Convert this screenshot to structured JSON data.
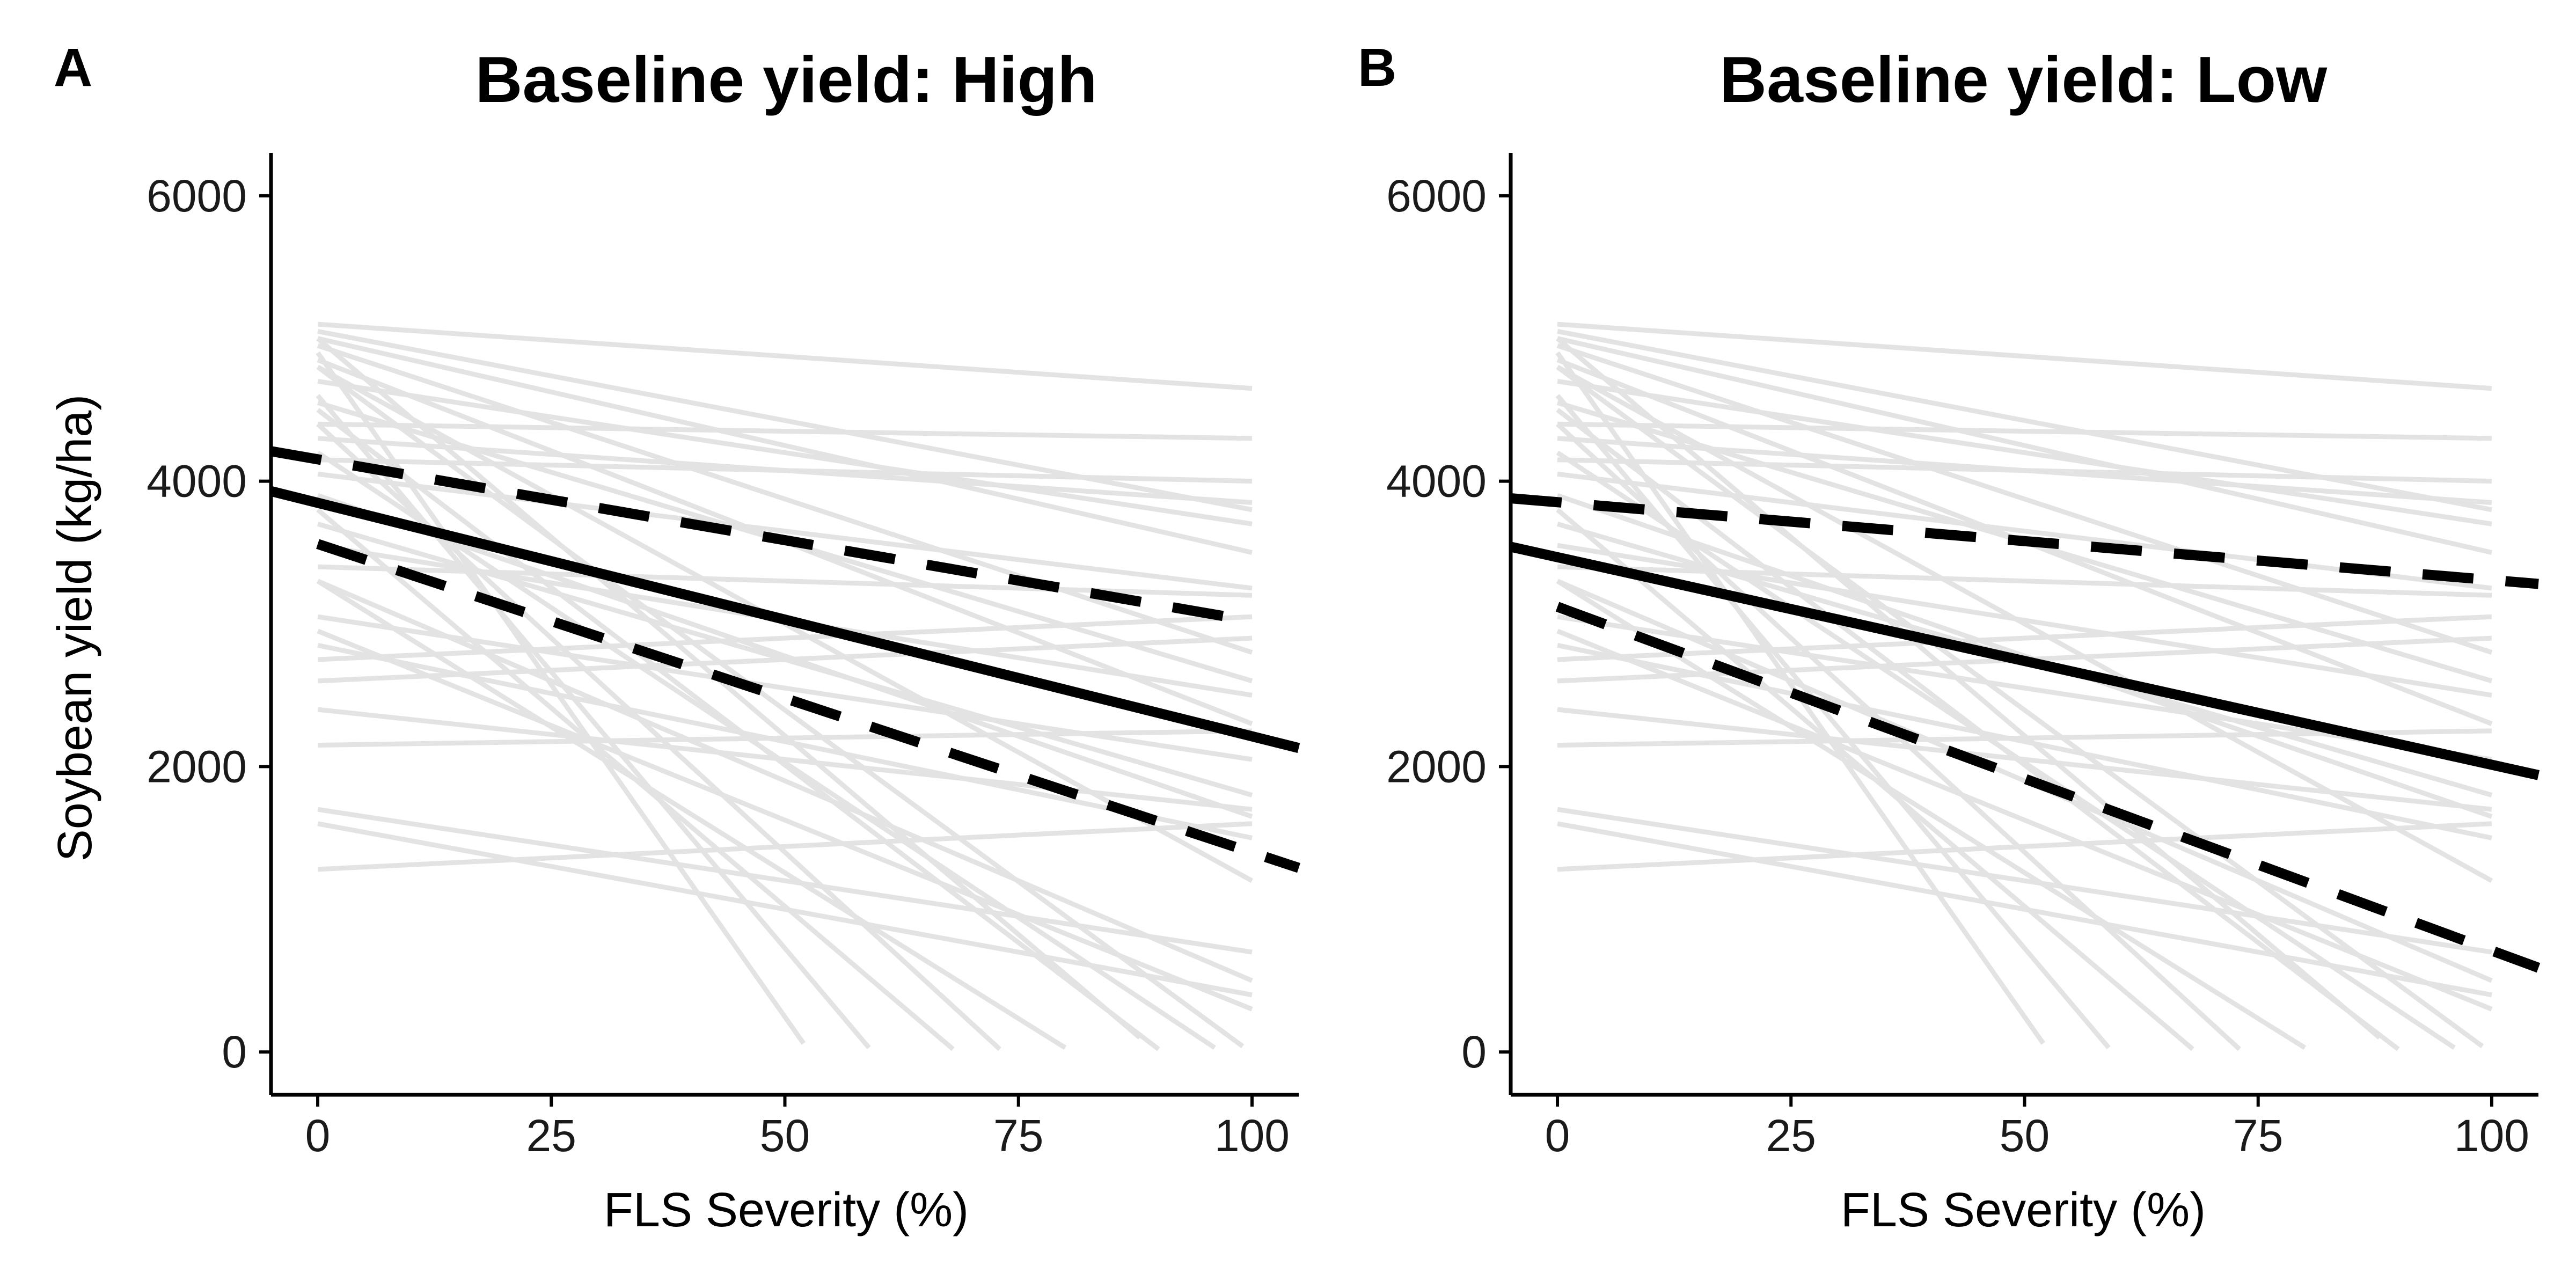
{
  "chart_data": [
    {
      "type": "line",
      "panel_label": "A",
      "title": "Baseline yield: High",
      "xlabel": "FLS Severity (%)",
      "ylabel": "Soybean yield (kg/ha)",
      "xlim": [
        -5,
        105
      ],
      "ylim": [
        -300,
        6300
      ],
      "xticks": [
        "0",
        "25",
        "50",
        "75",
        "100"
      ],
      "yticks": [
        "0",
        "2000",
        "4000",
        "6000"
      ],
      "mean_line": {
        "x": [
          -5,
          105
        ],
        "y": [
          3930,
          2130
        ]
      },
      "ci_upper": {
        "x": [
          -5,
          100
        ],
        "y": [
          4210,
          3020
        ]
      },
      "ci_lower": {
        "x": [
          0,
          105
        ],
        "y": [
          3560,
          1290
        ]
      }
    },
    {
      "type": "line",
      "panel_label": "B",
      "title": "Baseline yield: Low",
      "xlabel": "FLS Severity (%)",
      "ylabel": "",
      "xlim": [
        -5,
        105
      ],
      "ylim": [
        -300,
        6300
      ],
      "xticks": [
        "0",
        "25",
        "50",
        "75",
        "100"
      ],
      "yticks": [
        "0",
        "2000",
        "4000",
        "6000"
      ],
      "mean_line": {
        "x": [
          -5,
          105
        ],
        "y": [
          3540,
          1940
        ]
      },
      "ci_upper": {
        "x": [
          -5,
          105
        ],
        "y": [
          3880,
          3280
        ]
      },
      "ci_lower": {
        "x": [
          0,
          105
        ],
        "y": [
          3120,
          590
        ]
      }
    }
  ],
  "study_lines": [
    {
      "x": [
        0,
        100
      ],
      "y": [
        5100,
        4650
      ]
    },
    {
      "x": [
        0,
        100
      ],
      "y": [
        5050,
        3800
      ]
    },
    {
      "x": [
        0,
        100
      ],
      "y": [
        5000,
        3500
      ]
    },
    {
      "x": [
        0,
        100
      ],
      "y": [
        4950,
        2800
      ]
    },
    {
      "x": [
        0,
        100
      ],
      "y": [
        4850,
        2300
      ]
    },
    {
      "x": [
        0,
        100
      ],
      "y": [
        4800,
        1200
      ]
    },
    {
      "x": [
        0,
        100
      ],
      "y": [
        4700,
        3700
      ]
    },
    {
      "x": [
        0,
        100
      ],
      "y": [
        4550,
        2600
      ]
    },
    {
      "x": [
        0,
        100
      ],
      "y": [
        4400,
        4300
      ]
    },
    {
      "x": [
        0,
        100
      ],
      "y": [
        4300,
        3850
      ]
    },
    {
      "x": [
        0,
        100
      ],
      "y": [
        4150,
        4000
      ]
    },
    {
      "x": [
        0,
        100
      ],
      "y": [
        4050,
        3250
      ]
    },
    {
      "x": [
        0,
        100
      ],
      "y": [
        3900,
        1650
      ]
    },
    {
      "x": [
        0,
        100
      ],
      "y": [
        3700,
        1800
      ]
    },
    {
      "x": [
        0,
        100
      ],
      "y": [
        3550,
        2500
      ]
    },
    {
      "x": [
        0,
        100
      ],
      "y": [
        3400,
        3200
      ]
    },
    {
      "x": [
        0,
        100
      ],
      "y": [
        3300,
        500
      ]
    },
    {
      "x": [
        0,
        100
      ],
      "y": [
        3050,
        2050
      ]
    },
    {
      "x": [
        0,
        100
      ],
      "y": [
        2950,
        300
      ]
    },
    {
      "x": [
        0,
        100
      ],
      "y": [
        2850,
        1500
      ]
    },
    {
      "x": [
        0,
        100
      ],
      "y": [
        2750,
        3050
      ]
    },
    {
      "x": [
        0,
        100
      ],
      "y": [
        2600,
        2900
      ]
    },
    {
      "x": [
        0,
        100
      ],
      "y": [
        2400,
        1700
      ]
    },
    {
      "x": [
        0,
        100
      ],
      "y": [
        2150,
        2250
      ]
    },
    {
      "x": [
        0,
        100
      ],
      "y": [
        1700,
        700
      ]
    },
    {
      "x": [
        0,
        100
      ],
      "y": [
        1600,
        400
      ]
    },
    {
      "x": [
        0,
        100
      ],
      "y": [
        1280,
        1600
      ]
    },
    {
      "x": [
        0,
        52
      ],
      "y": [
        4900,
        60
      ]
    },
    {
      "x": [
        0,
        59
      ],
      "y": [
        4600,
        30
      ]
    },
    {
      "x": [
        0,
        68
      ],
      "y": [
        3800,
        20
      ]
    },
    {
      "x": [
        0,
        73
      ],
      "y": [
        4400,
        20
      ]
    },
    {
      "x": [
        0,
        80
      ],
      "y": [
        3300,
        30
      ]
    },
    {
      "x": [
        0,
        90
      ],
      "y": [
        4500,
        20
      ]
    },
    {
      "x": [
        0,
        96
      ],
      "y": [
        4200,
        30
      ]
    },
    {
      "x": [
        0,
        99
      ],
      "y": [
        4800,
        40
      ]
    },
    {
      "x": [
        0,
        88
      ],
      "y": [
        5000,
        100
      ]
    }
  ]
}
